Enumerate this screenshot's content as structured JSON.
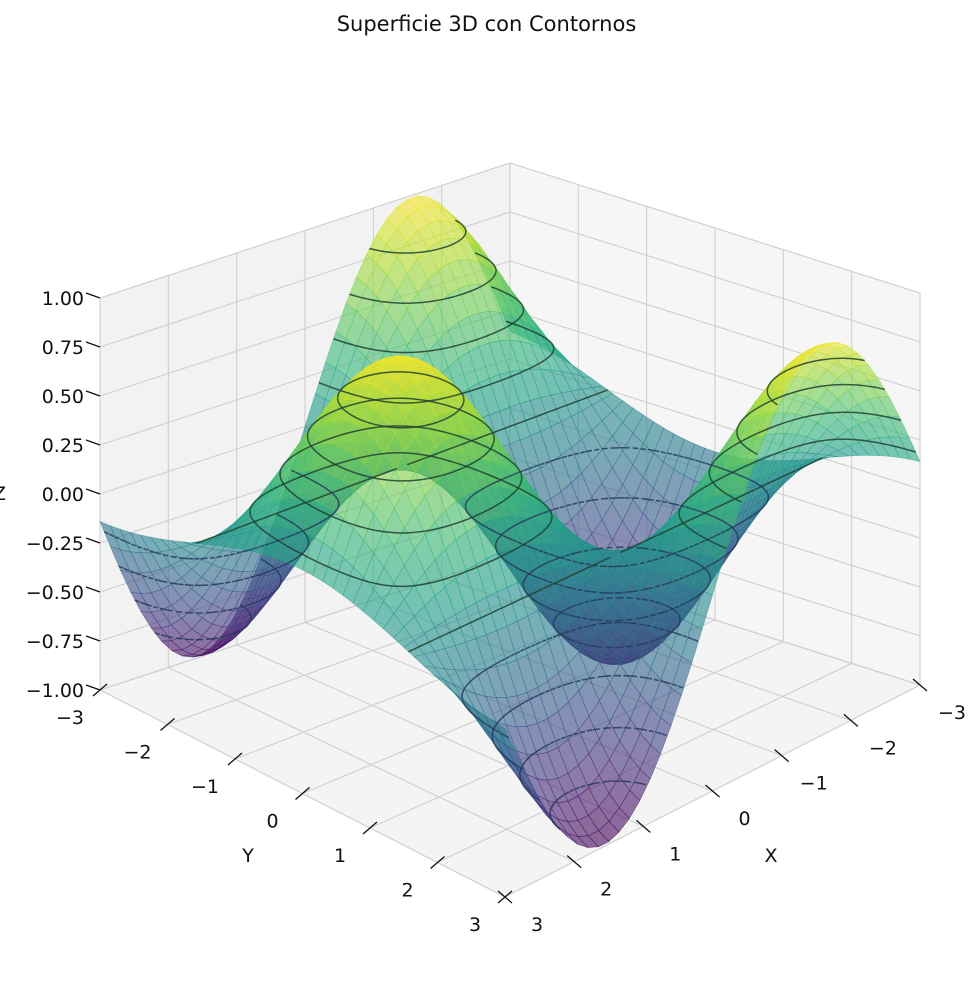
{
  "chart_data": {
    "type": "surface3d",
    "title": "Superficie 3D con Contornos",
    "xlabel": "X",
    "ylabel": "Y",
    "zlabel": "Z",
    "xlim": [
      -3,
      3
    ],
    "ylim": [
      -3,
      3
    ],
    "zlim": [
      -1,
      1
    ],
    "function": "z = sin(x) * cos(y)",
    "x_ticks": [
      "−3",
      "−2",
      "−1",
      "0",
      "1",
      "2",
      "3"
    ],
    "y_ticks": [
      "−3",
      "−2",
      "−1",
      "0",
      "1",
      "2",
      "3"
    ],
    "z_ticks": [
      "−1.00",
      "−0.75",
      "−0.50",
      "−0.25",
      "0.00",
      "0.25",
      "0.50",
      "0.75",
      "1.00"
    ],
    "contour_levels": [
      -0.8,
      -0.6,
      -0.4,
      -0.2,
      0.0,
      0.2,
      0.4,
      0.6,
      0.8
    ],
    "colormap": "viridis",
    "surface_alpha": 0.6,
    "grid": true,
    "view": {
      "elevation": 30,
      "azimuth": 45
    }
  }
}
